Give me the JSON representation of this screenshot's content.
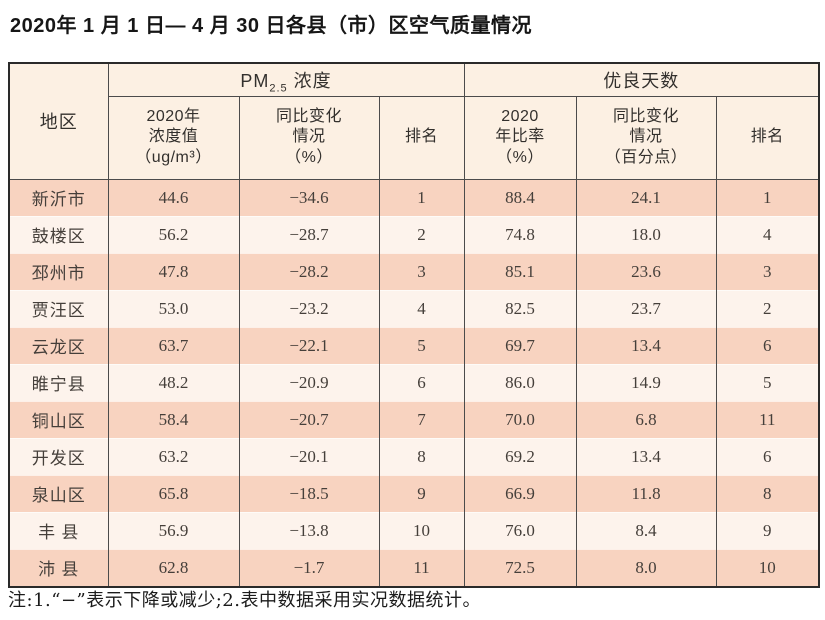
{
  "title": "2020年 1 月 1 日— 4 月 30 日各县（市）区空气质量情况",
  "table": {
    "region_header": "地区",
    "pm_group": {
      "prefix": "PM",
      "sub": "2.5",
      "suffix": " 浓度"
    },
    "good_days_group": "优良天数",
    "sub_headers": [
      "2020年\n浓度值\n（ug/m³）",
      "同比变化\n情况\n（%）",
      "排名",
      "2020\n年比率\n（%）",
      "同比变化\n情况\n（百分点）",
      "排名"
    ],
    "rows": [
      [
        "新沂市",
        "44.6",
        "−34.6",
        "1",
        "88.4",
        "24.1",
        "1"
      ],
      [
        "鼓楼区",
        "56.2",
        "−28.7",
        "2",
        "74.8",
        "18.0",
        "4"
      ],
      [
        "邳州市",
        "47.8",
        "−28.2",
        "3",
        "85.1",
        "23.6",
        "3"
      ],
      [
        "贾汪区",
        "53.0",
        "−23.2",
        "4",
        "82.5",
        "23.7",
        "2"
      ],
      [
        "云龙区",
        "63.7",
        "−22.1",
        "5",
        "69.7",
        "13.4",
        "6"
      ],
      [
        "睢宁县",
        "48.2",
        "−20.9",
        "6",
        "86.0",
        "14.9",
        "5"
      ],
      [
        "铜山区",
        "58.4",
        "−20.7",
        "7",
        "70.0",
        "6.8",
        "11"
      ],
      [
        "开发区",
        "63.2",
        "−20.1",
        "8",
        "69.2",
        "13.4",
        "6"
      ],
      [
        "泉山区",
        "65.8",
        "−18.5",
        "9",
        "66.9",
        "11.8",
        "8"
      ],
      [
        "丰 县",
        "56.9",
        "−13.8",
        "10",
        "76.0",
        "8.4",
        "9"
      ],
      [
        "沛 县",
        "62.8",
        "−1.7",
        "11",
        "72.5",
        "8.0",
        "10"
      ]
    ]
  },
  "note": "注:1.“−”表示下降或减少;2.表中数据采用实况数据统计。",
  "colors": {
    "row_odd": "#f8d3c0",
    "row_even": "#fdf3ec",
    "header_bg": "#fcf0e3",
    "border_dark": "#4b4b4b"
  }
}
